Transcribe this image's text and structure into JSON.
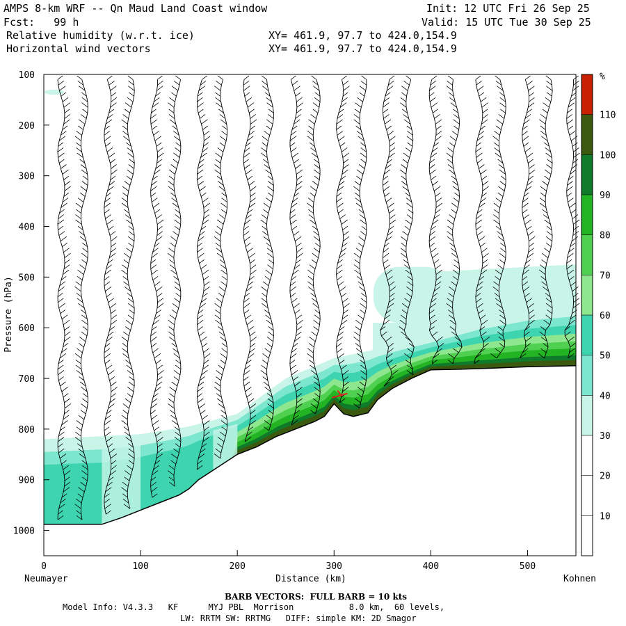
{
  "header": {
    "title": "AMPS 8-km WRF -- Qn Maud Land Coast window",
    "init": "Init: 12 UTC Fri 26 Sep 25",
    "fcst": "Fcst:   99 h",
    "valid": "Valid: 15 UTC Tue 30 Sep 25",
    "field1": "Relative humidity (w.r.t. ice)",
    "field1_xy": "XY= 461.9, 97.7 to 424.0,154.9",
    "field2": "Horizontal wind vectors",
    "field2_xy": "XY= 461.9, 97.7 to 424.0,154.9"
  },
  "footer": {
    "left_station": "Neumayer",
    "right_station": "Kohnen",
    "barb_note": "BARB VECTORS:  FULL BARB = 10 kts",
    "model_line1": "Model Info: V4.3.3   KF      MYJ PBL  Morrison           8.0 km,  60 levels,",
    "model_line2": "LW: RRTM SW: RRTMG   DIFF: simple KM: 2D Smagor"
  },
  "colors": {
    "rh_30_40": "#c8f5e8",
    "rh_40_50": "#7de6cf",
    "rh_50_60": "#3fd4b0",
    "rh_60_70": "#8ee68e",
    "rh_70_80": "#50d050",
    "rh_80_90": "#22b422",
    "rh_90_100": "#0e7a2a",
    "rh_100_110": "#3b5a10",
    "rh_110_plus": "#c82000",
    "terrain": "#ffffff",
    "barb": "#000000",
    "barb_highlight": "#e02020"
  },
  "chart_data": {
    "type": "contour-cross-section",
    "title": "Relative humidity (w.r.t. ice)",
    "xlabel": "Distance (km)",
    "ylabel": "Pressure (hPa)",
    "xlim": [
      0,
      550
    ],
    "ylim": [
      1050,
      100
    ],
    "xticks": [
      0,
      100,
      200,
      300,
      400,
      500
    ],
    "yticks": [
      100,
      200,
      300,
      400,
      500,
      600,
      700,
      800,
      900,
      1000
    ],
    "colorbar": {
      "unit": "%",
      "levels": [
        10,
        20,
        30,
        40,
        50,
        60,
        70,
        80,
        90,
        100,
        110
      ],
      "colors": [
        "#ffffff",
        "#ffffff",
        "#ffffff",
        "#c8f5e8",
        "#7de6cf",
        "#3fd4b0",
        "#8ee68e",
        "#50d050",
        "#22b422",
        "#0e7a2a",
        "#3b5a10",
        "#c82000"
      ]
    },
    "terrain_profile": {
      "distance_km": [
        0,
        20,
        60,
        80,
        100,
        120,
        140,
        150,
        160,
        180,
        200,
        220,
        240,
        260,
        280,
        290,
        300,
        310,
        320,
        335,
        345,
        360,
        380,
        400,
        430,
        460,
        500,
        550
      ],
      "pressure_hpa": [
        988,
        988,
        988,
        975,
        960,
        945,
        930,
        918,
        900,
        875,
        850,
        835,
        815,
        800,
        785,
        775,
        750,
        770,
        775,
        768,
        742,
        720,
        700,
        683,
        682,
        680,
        677,
        675
      ]
    },
    "moist_layer": {
      "distance_km": [
        0,
        50,
        100,
        150,
        200,
        250,
        300,
        350,
        400,
        450,
        500,
        550
      ],
      "top_pressure_hpa": [
        820,
        815,
        810,
        795,
        770,
        700,
        660,
        640,
        620,
        590,
        570,
        560
      ]
    },
    "barb_columns_km": [
      18,
      42,
      66,
      90,
      114,
      138,
      162,
      186,
      210,
      234,
      258,
      282,
      306,
      330,
      354,
      378,
      402,
      426,
      450,
      474,
      498,
      522,
      544
    ]
  }
}
